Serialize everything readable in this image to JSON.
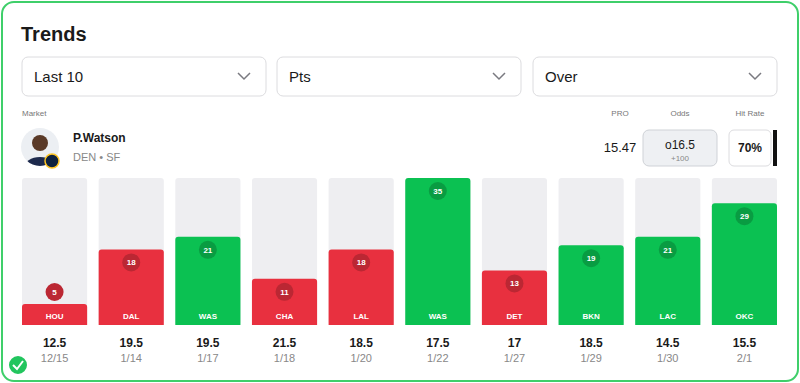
{
  "chart_data": {
    "type": "bar",
    "title": "Trends",
    "categories": [
      "HOU",
      "DAL",
      "WAS",
      "CHA",
      "LAL",
      "WAS",
      "DET",
      "BKN",
      "LAC",
      "OKC"
    ],
    "values": [
      5,
      18,
      21,
      11,
      18,
      35,
      13,
      19,
      21,
      29
    ],
    "colors": [
      "#e8303f",
      "#e8303f",
      "#0bc152",
      "#e8303f",
      "#e8303f",
      "#0bc152",
      "#e8303f",
      "#0bc152",
      "#0bc152",
      "#0bc152"
    ],
    "ylim": [
      0,
      35
    ],
    "yticks": [],
    "tick_labels": "x",
    "data_labels": true,
    "lines": [
      12.5,
      19.5,
      19.5,
      21.5,
      18.5,
      17.5,
      17,
      18.5,
      14.5,
      15.5
    ],
    "dates": [
      "12/15",
      "1/14",
      "1/17",
      "1/18",
      "1/20",
      "1/22",
      "1/27",
      "1/29",
      "1/30",
      "2/1"
    ]
  },
  "card": {
    "filters": [
      "Last 10",
      "Pts",
      "Over"
    ],
    "columns": {
      "market": "Market",
      "pro": "PRO",
      "odds": "Odds",
      "hit_rate": "Hit Rate"
    },
    "player": {
      "name": "P.Watson",
      "team": "DEN • SF",
      "pro": "15.47",
      "odds": "o16.5",
      "price": "+100",
      "hit_rate": "70%"
    }
  }
}
